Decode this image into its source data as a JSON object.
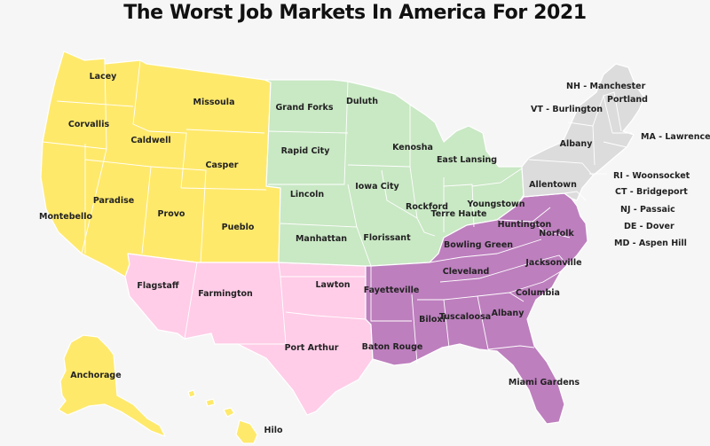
{
  "title": "The Worst Job Markets In America For 2021",
  "colors": {
    "background": "#f6f6f6",
    "west": "#ffe96b",
    "southwest": "#ffcde8",
    "midwest": "#c9e8c4",
    "south": "#bd7fbe",
    "northeast": "#dcdcdc",
    "state_border": "#ffffff"
  },
  "regions": [
    {
      "id": "west",
      "color_key": "west"
    },
    {
      "id": "southwest",
      "color_key": "southwest"
    },
    {
      "id": "midwest",
      "color_key": "midwest"
    },
    {
      "id": "south",
      "color_key": "south"
    },
    {
      "id": "northeast",
      "color_key": "northeast"
    },
    {
      "id": "alaska",
      "color_key": "west"
    },
    {
      "id": "hawaii",
      "color_key": "west"
    }
  ],
  "cities": [
    {
      "label": "Lacey",
      "region": "west"
    },
    {
      "label": "Missoula",
      "region": "west"
    },
    {
      "label": "Corvallis",
      "region": "west"
    },
    {
      "label": "Caldwell",
      "region": "west"
    },
    {
      "label": "Casper",
      "region": "west"
    },
    {
      "label": "Paradise",
      "region": "west"
    },
    {
      "label": "Montebello",
      "region": "west"
    },
    {
      "label": "Provo",
      "region": "west"
    },
    {
      "label": "Pueblo",
      "region": "west"
    },
    {
      "label": "Anchorage",
      "region": "alaska"
    },
    {
      "label": "Hilo",
      "region": "hawaii"
    },
    {
      "label": "Flagstaff",
      "region": "southwest"
    },
    {
      "label": "Farmington",
      "region": "southwest"
    },
    {
      "label": "Lawton",
      "region": "southwest"
    },
    {
      "label": "Port Arthur",
      "region": "southwest"
    },
    {
      "label": "Grand Forks",
      "region": "midwest"
    },
    {
      "label": "Duluth",
      "region": "midwest"
    },
    {
      "label": "Rapid City",
      "region": "midwest"
    },
    {
      "label": "Kenosha",
      "region": "midwest"
    },
    {
      "label": "East Lansing",
      "region": "midwest"
    },
    {
      "label": "Lincoln",
      "region": "midwest"
    },
    {
      "label": "Iowa City",
      "region": "midwest"
    },
    {
      "label": "Rockford",
      "region": "midwest"
    },
    {
      "label": "Terre Haute",
      "region": "midwest"
    },
    {
      "label": "Youngstown",
      "region": "midwest"
    },
    {
      "label": "Manhattan",
      "region": "midwest"
    },
    {
      "label": "Florissant",
      "region": "midwest"
    },
    {
      "label": "Huntington",
      "region": "south"
    },
    {
      "label": "Norfolk",
      "region": "south"
    },
    {
      "label": "Bowling Green",
      "region": "south"
    },
    {
      "label": "Cleveland",
      "region": "south"
    },
    {
      "label": "Jacksonville",
      "region": "south"
    },
    {
      "label": "Fayetteville",
      "region": "south"
    },
    {
      "label": "Columbia",
      "region": "south"
    },
    {
      "label": "Biloxi",
      "region": "south"
    },
    {
      "label": "Tuscaloosa",
      "region": "south"
    },
    {
      "label": "Albany",
      "region": "south"
    },
    {
      "label": "Baton Rouge",
      "region": "south"
    },
    {
      "label": "Miami Gardens",
      "region": "south"
    },
    {
      "label": "Portland",
      "region": "northeast"
    },
    {
      "label": "Albany",
      "region": "northeast"
    },
    {
      "label": "Allentown",
      "region": "northeast"
    }
  ],
  "northeast_callouts": [
    "NH - Manchester",
    "VT - Burlington",
    "MA - Lawrence",
    "RI - Woonsocket",
    "CT - Bridgeport",
    "NJ - Passaic",
    "DE - Dover",
    "MD - Aspen Hill"
  ]
}
